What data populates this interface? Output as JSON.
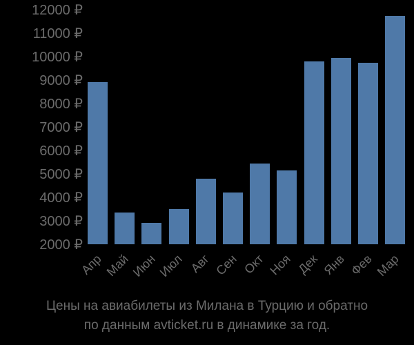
{
  "chart_data": {
    "type": "bar",
    "title": "Цены на авиабилеты из Милана в Турцию и обратно по данным avticket.ru в динамике за год.",
    "xlabel": "",
    "ylabel": "",
    "categories": [
      "Апр",
      "Май",
      "Июн",
      "Июл",
      "Авг",
      "Сен",
      "Окт",
      "Ноя",
      "Дек",
      "Янв",
      "Фев",
      "Мар"
    ],
    "values": [
      8900,
      3350,
      2900,
      3500,
      4800,
      4200,
      5450,
      5150,
      9800,
      9950,
      9750,
      11750
    ],
    "ylim": [
      2000,
      12000
    ],
    "yticks": [
      2000,
      3000,
      4000,
      5000,
      6000,
      7000,
      8000,
      9000,
      10000,
      11000,
      12000
    ],
    "ytick_labels": [
      "2000 ₽",
      "3000 ₽",
      "4000 ₽",
      "5000 ₽",
      "6000 ₽",
      "7000 ₽",
      "8000 ₽",
      "9000 ₽",
      "10000 ₽",
      "11000 ₽",
      "12000 ₽"
    ],
    "currency": "₽",
    "grid": false,
    "legend": null,
    "bar_color": "#4f79a8",
    "background": "#000000"
  },
  "caption": {
    "line1": "Цены на авиабилеты из Милана в Турцию и обратно",
    "line2": "по данным avticket.ru в динамике за год."
  }
}
